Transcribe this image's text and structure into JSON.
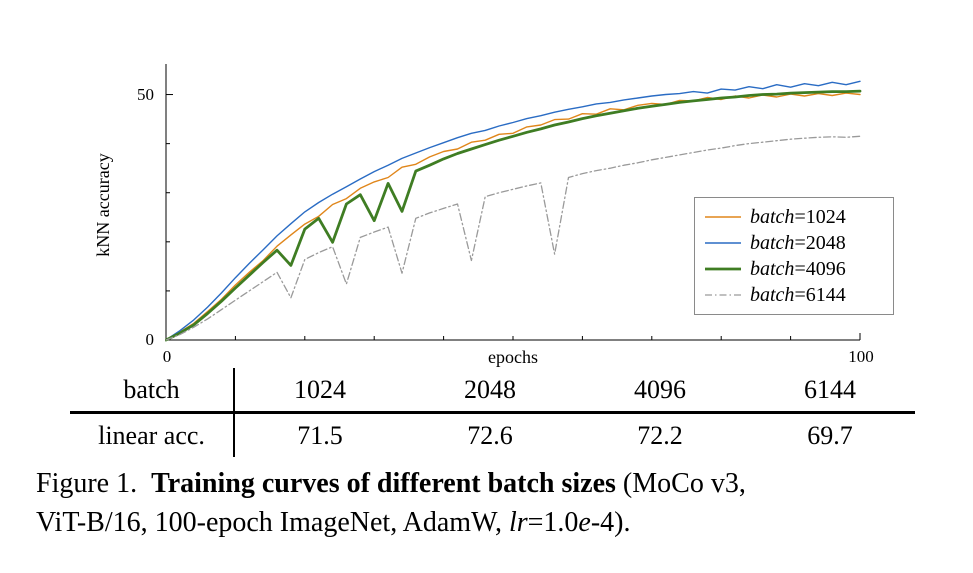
{
  "chart_data": {
    "type": "line",
    "title": "",
    "xlabel": "epochs",
    "ylabel": "kNN accuracy",
    "xlim": [
      0,
      100
    ],
    "ylim": [
      0,
      55
    ],
    "grid": false,
    "legend_position": "right-middle",
    "tick_labels": {
      "y_top": "50",
      "y_bottom": "0",
      "x_left": "0",
      "x_right": "100"
    },
    "x_minor_ticks": [
      10,
      20,
      30,
      40,
      50,
      60,
      70,
      80,
      90
    ],
    "y_minor_ticks": [
      10,
      20,
      30,
      40
    ],
    "x": [
      0,
      2,
      4,
      6,
      8,
      10,
      12,
      14,
      16,
      18,
      20,
      22,
      24,
      26,
      28,
      30,
      32,
      34,
      36,
      38,
      40,
      42,
      44,
      46,
      48,
      50,
      52,
      54,
      56,
      58,
      60,
      62,
      64,
      66,
      68,
      70,
      72,
      74,
      76,
      78,
      80,
      82,
      84,
      86,
      88,
      90,
      92,
      94,
      96,
      98,
      100
    ],
    "series": [
      {
        "name": "batch=1024",
        "label_italic": "batch",
        "label_rest": "=1024",
        "color": "#e0861a",
        "width": 1.4,
        "dash": null,
        "y": [
          0,
          1.6,
          3.4,
          5.8,
          8.3,
          11.2,
          13.8,
          16.2,
          19.1,
          21.4,
          23.6,
          25.2,
          27.6,
          28.8,
          30.9,
          32.2,
          33.1,
          35.2,
          35.8,
          37.3,
          38.4,
          38.9,
          40.3,
          40.7,
          41.9,
          42.1,
          43.4,
          43.8,
          44.9,
          45.0,
          46.1,
          46.0,
          47.1,
          46.9,
          47.8,
          48.2,
          48.0,
          48.8,
          48.7,
          49.4,
          49.0,
          49.7,
          49.3,
          49.9,
          49.5,
          50.1,
          49.7,
          50.2,
          49.8,
          50.3,
          50.0
        ]
      },
      {
        "name": "batch=2048",
        "label_italic": "batch",
        "label_rest": "=2048",
        "color": "#2a6cc4",
        "width": 1.4,
        "dash": null,
        "y": [
          0,
          1.9,
          4.1,
          6.7,
          9.6,
          12.7,
          15.6,
          18.4,
          21.2,
          23.7,
          26.1,
          28.0,
          29.7,
          31.2,
          32.8,
          34.3,
          35.6,
          37.0,
          38.1,
          39.2,
          40.2,
          41.2,
          42.1,
          42.7,
          43.6,
          44.3,
          45.1,
          45.7,
          46.4,
          47.0,
          47.5,
          48.1,
          48.4,
          48.9,
          49.3,
          49.7,
          50.0,
          50.2,
          50.6,
          50.3,
          51.1,
          50.9,
          51.6,
          51.2,
          52.0,
          51.5,
          52.2,
          51.8,
          52.5,
          52.0,
          52.7
        ]
      },
      {
        "name": "batch=4096",
        "label_italic": "batch",
        "label_rest": "=4096",
        "color": "#3f7d23",
        "width": 2.8,
        "dash": null,
        "y": [
          0,
          1.4,
          3.1,
          5.4,
          7.9,
          10.6,
          13.2,
          15.8,
          18.3,
          15.2,
          22.6,
          24.8,
          19.9,
          27.7,
          29.6,
          24.3,
          31.9,
          26.2,
          34.4,
          35.6,
          36.9,
          38.0,
          38.9,
          39.8,
          40.7,
          41.5,
          42.3,
          43.0,
          43.8,
          44.4,
          45.1,
          45.7,
          46.2,
          46.7,
          47.2,
          47.6,
          48.0,
          48.4,
          48.7,
          49.0,
          49.3,
          49.5,
          49.8,
          50.0,
          50.1,
          50.3,
          50.4,
          50.5,
          50.6,
          50.6,
          50.7
        ]
      },
      {
        "name": "batch=6144",
        "label_italic": "batch",
        "label_rest": "=6144",
        "color": "#9a9a9a",
        "width": 1.3,
        "dash": "7 3 1.5 3",
        "y": [
          0,
          1.1,
          2.6,
          4.3,
          6.2,
          8.1,
          10.0,
          11.9,
          13.8,
          8.6,
          16.4,
          17.8,
          19.0,
          11.4,
          20.9,
          22.0,
          23.0,
          13.6,
          24.8,
          25.9,
          26.8,
          27.7,
          16.2,
          29.2,
          30.0,
          30.7,
          31.4,
          32.0,
          17.5,
          33.1,
          33.9,
          34.5,
          35.0,
          35.6,
          36.1,
          36.7,
          37.2,
          37.7,
          38.2,
          38.7,
          39.1,
          39.6,
          40.0,
          40.3,
          40.6,
          40.9,
          41.1,
          41.3,
          41.4,
          41.3,
          41.5
        ]
      }
    ]
  },
  "table": {
    "rows": [
      {
        "label": "batch",
        "values": [
          "1024",
          "2048",
          "4096",
          "6144"
        ]
      },
      {
        "label": "linear acc.",
        "values": [
          "71.5",
          "72.6",
          "72.2",
          "69.7"
        ]
      }
    ]
  },
  "figure": {
    "caption": {
      "segments": [
        {
          "text": "Figure 1.  ",
          "style": "normal"
        },
        {
          "text": "Training curves of different batch sizes",
          "style": "bold"
        },
        {
          "text": " (MoCo v3,\nViT-B/16, 100-epoch ImageNet, AdamW, ",
          "style": "normal"
        },
        {
          "text": "lr",
          "style": "italic"
        },
        {
          "text": "=1.0",
          "style": "normal"
        },
        {
          "text": "e",
          "style": "italic"
        },
        {
          "text": "-4).",
          "style": "normal"
        }
      ]
    }
  }
}
